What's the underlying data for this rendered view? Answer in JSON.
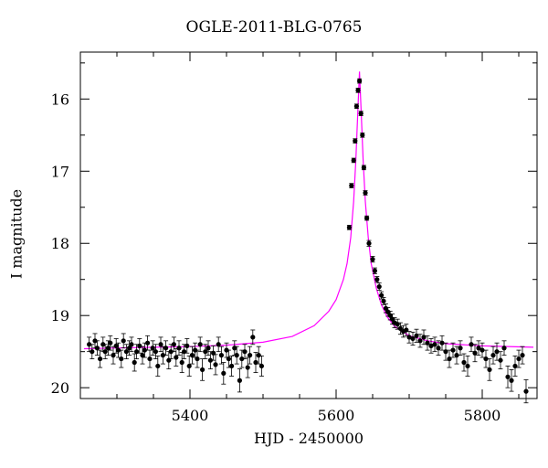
{
  "chart_data": {
    "type": "scatter",
    "title": "OGLE-2011-BLG-0765",
    "xlabel": "HJD - 2450000",
    "ylabel": "I magnitude",
    "xlim": [
      5250,
      5875
    ],
    "ylim": [
      20.15,
      15.35
    ],
    "y_inverted": true,
    "x_ticks": [
      5400,
      5600,
      5800
    ],
    "y_ticks": [
      16,
      17,
      18,
      19,
      20
    ],
    "grid": false,
    "legend": "none",
    "colors": {
      "points": "#000000",
      "model": "#ff00ff"
    },
    "series": [
      {
        "kind": "points_with_errorbars",
        "x": [
          5262,
          5266,
          5270,
          5273,
          5277,
          5281,
          5284,
          5288,
          5291,
          5295,
          5299,
          5302,
          5306,
          5309,
          5313,
          5317,
          5320,
          5324,
          5327,
          5331,
          5335,
          5338,
          5342,
          5345,
          5349,
          5353,
          5356,
          5360,
          5363,
          5367,
          5371,
          5374,
          5378,
          5381,
          5385,
          5389,
          5392,
          5396,
          5399,
          5403,
          5407,
          5410,
          5414,
          5417,
          5421,
          5425,
          5428,
          5432,
          5435,
          5439,
          5443,
          5446,
          5450,
          5453,
          5457,
          5461,
          5464,
          5468,
          5471,
          5475,
          5479,
          5482,
          5486,
          5490,
          5494,
          5498,
          5618,
          5621,
          5624,
          5626,
          5628,
          5630,
          5632,
          5634,
          5636,
          5638,
          5640,
          5642,
          5645,
          5650,
          5653,
          5656,
          5659,
          5662,
          5665,
          5668,
          5671,
          5674,
          5677,
          5680,
          5684,
          5688,
          5692,
          5696,
          5700,
          5705,
          5710,
          5715,
          5720,
          5725,
          5730,
          5735,
          5740,
          5745,
          5750,
          5755,
          5760,
          5765,
          5770,
          5775,
          5780,
          5785,
          5790,
          5795,
          5800,
          5805,
          5810,
          5815,
          5820,
          5825,
          5830,
          5835,
          5840,
          5845,
          5850,
          5855,
          5860
        ],
        "y": [
          19.4,
          19.5,
          19.35,
          19.45,
          19.6,
          19.4,
          19.5,
          19.45,
          19.38,
          19.55,
          19.42,
          19.48,
          19.6,
          19.35,
          19.5,
          19.45,
          19.4,
          19.65,
          19.5,
          19.42,
          19.55,
          19.48,
          19.38,
          19.6,
          19.45,
          19.5,
          19.7,
          19.4,
          19.55,
          19.45,
          19.62,
          19.5,
          19.4,
          19.58,
          19.45,
          19.65,
          19.5,
          19.42,
          19.7,
          19.55,
          19.48,
          19.6,
          19.4,
          19.75,
          19.5,
          19.45,
          19.62,
          19.52,
          19.68,
          19.4,
          19.55,
          19.8,
          19.48,
          19.6,
          19.7,
          19.45,
          19.55,
          19.9,
          19.6,
          19.5,
          19.72,
          19.55,
          19.3,
          19.65,
          19.55,
          19.7,
          17.78,
          17.2,
          16.85,
          16.58,
          16.1,
          15.88,
          15.75,
          16.2,
          16.5,
          16.95,
          17.3,
          17.65,
          18.0,
          18.22,
          18.38,
          18.5,
          18.6,
          18.72,
          18.8,
          18.9,
          18.95,
          19.0,
          19.05,
          19.1,
          19.12,
          19.18,
          19.22,
          19.2,
          19.3,
          19.32,
          19.28,
          19.35,
          19.3,
          19.38,
          19.42,
          19.4,
          19.45,
          19.38,
          19.5,
          19.6,
          19.48,
          19.55,
          19.45,
          19.65,
          19.7,
          19.4,
          19.52,
          19.45,
          19.48,
          19.6,
          19.75,
          19.55,
          19.5,
          19.62,
          19.45,
          19.85,
          19.9,
          19.7,
          19.6,
          19.55,
          20.05
        ],
        "errors": [
          0.1,
          0.1,
          0.1,
          0.1,
          0.12,
          0.1,
          0.1,
          0.1,
          0.1,
          0.12,
          0.1,
          0.1,
          0.12,
          0.1,
          0.1,
          0.1,
          0.1,
          0.12,
          0.1,
          0.1,
          0.12,
          0.1,
          0.1,
          0.12,
          0.1,
          0.1,
          0.14,
          0.1,
          0.12,
          0.1,
          0.12,
          0.1,
          0.1,
          0.12,
          0.1,
          0.14,
          0.1,
          0.1,
          0.14,
          0.12,
          0.1,
          0.12,
          0.1,
          0.15,
          0.1,
          0.1,
          0.12,
          0.1,
          0.14,
          0.1,
          0.12,
          0.15,
          0.1,
          0.12,
          0.14,
          0.1,
          0.12,
          0.16,
          0.12,
          0.1,
          0.14,
          0.12,
          0.1,
          0.14,
          0.12,
          0.14,
          0.03,
          0.03,
          0.03,
          0.03,
          0.03,
          0.03,
          0.03,
          0.03,
          0.03,
          0.03,
          0.03,
          0.03,
          0.04,
          0.04,
          0.04,
          0.04,
          0.05,
          0.05,
          0.05,
          0.06,
          0.06,
          0.06,
          0.07,
          0.07,
          0.07,
          0.08,
          0.08,
          0.08,
          0.08,
          0.09,
          0.09,
          0.09,
          0.1,
          0.1,
          0.1,
          0.1,
          0.1,
          0.1,
          0.12,
          0.12,
          0.1,
          0.12,
          0.1,
          0.12,
          0.14,
          0.1,
          0.12,
          0.1,
          0.1,
          0.12,
          0.15,
          0.12,
          0.12,
          0.12,
          0.1,
          0.15,
          0.15,
          0.14,
          0.12,
          0.12,
          0.16
        ]
      },
      {
        "kind": "model_curve",
        "x": [
          5255,
          5300,
          5350,
          5400,
          5450,
          5500,
          5540,
          5570,
          5590,
          5600,
          5610,
          5615,
          5620,
          5624,
          5627,
          5630,
          5632,
          5634,
          5637,
          5640,
          5644,
          5648,
          5655,
          5662,
          5670,
          5680,
          5700,
          5725,
          5750,
          5800,
          5870
        ],
        "y": [
          19.46,
          19.45,
          19.44,
          19.43,
          19.41,
          19.37,
          19.29,
          19.14,
          18.94,
          18.78,
          18.5,
          18.28,
          17.92,
          17.42,
          16.85,
          16.1,
          15.62,
          16.1,
          16.85,
          17.42,
          17.92,
          18.28,
          18.62,
          18.85,
          19.02,
          19.15,
          19.28,
          19.35,
          19.39,
          19.42,
          19.44
        ]
      }
    ]
  }
}
